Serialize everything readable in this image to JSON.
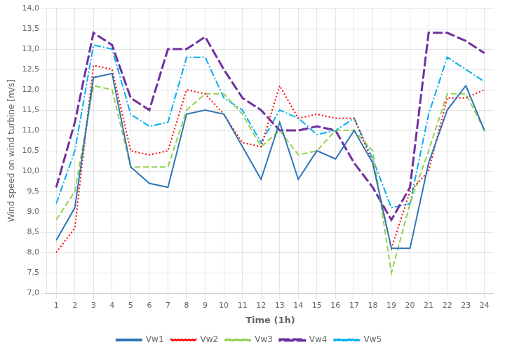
{
  "chart_data": {
    "type": "line",
    "x_label": "Time (1h)",
    "y_label": "Wind speed on wind turbine [m/s]",
    "x": [
      1,
      2,
      3,
      4,
      5,
      6,
      7,
      8,
      9,
      10,
      11,
      12,
      13,
      14,
      15,
      16,
      17,
      18,
      19,
      20,
      21,
      22,
      23,
      24
    ],
    "series": [
      {
        "name": "Vw1",
        "color": "#2e75b6",
        "line_style": "solid",
        "values": [
          8.3,
          9.1,
          12.3,
          12.4,
          10.1,
          9.7,
          9.6,
          11.4,
          11.5,
          11.4,
          10.6,
          9.8,
          11.2,
          9.8,
          10.5,
          10.3,
          11.0,
          10.2,
          8.1,
          8.1,
          10.2,
          11.5,
          12.1,
          11.0
        ]
      },
      {
        "name": "Vw2",
        "color": "#ff0000",
        "line_style": "dotted",
        "values": [
          8.0,
          8.6,
          12.6,
          12.5,
          10.5,
          10.4,
          10.5,
          12.0,
          11.9,
          11.4,
          10.7,
          10.6,
          12.1,
          11.3,
          11.4,
          11.3,
          11.3,
          10.2,
          8.1,
          9.5,
          10.0,
          11.8,
          11.8,
          12.0
        ]
      },
      {
        "name": "Vw3",
        "color": "#92d050",
        "line_style": "dashed",
        "values": [
          8.8,
          9.5,
          12.1,
          12.0,
          10.1,
          10.1,
          10.1,
          11.5,
          11.9,
          11.9,
          11.4,
          10.6,
          11.0,
          10.4,
          10.5,
          11.0,
          11.0,
          10.5,
          7.5,
          9.2,
          10.5,
          11.9,
          11.9,
          11.0
        ]
      },
      {
        "name": "Vw4",
        "color": "#7030a0",
        "line_style": "longdash",
        "values": [
          9.6,
          11.2,
          13.4,
          13.1,
          11.8,
          11.5,
          13.0,
          13.0,
          13.3,
          12.5,
          11.8,
          11.5,
          11.0,
          11.0,
          11.1,
          11.0,
          10.2,
          9.6,
          8.8,
          9.6,
          13.4,
          13.4,
          13.2,
          12.9
        ]
      },
      {
        "name": "Vw5",
        "color": "#00b0f0",
        "line_style": "dashdot",
        "values": [
          9.2,
          10.5,
          13.1,
          13.0,
          11.4,
          11.1,
          11.2,
          12.8,
          12.8,
          11.8,
          11.5,
          10.7,
          11.5,
          11.3,
          10.9,
          11.0,
          11.3,
          10.3,
          9.1,
          9.2,
          11.4,
          12.8,
          12.5,
          12.2
        ]
      }
    ],
    "xlim": [
      0.5,
      24.5
    ],
    "xticks": [
      1,
      2,
      3,
      4,
      5,
      6,
      7,
      8,
      9,
      10,
      11,
      12,
      13,
      14,
      15,
      16,
      17,
      18,
      19,
      20,
      21,
      22,
      23,
      24
    ],
    "ylim": [
      7.0,
      14.0
    ],
    "yticks": [
      {
        "value": 7.0,
        "label": "7,0"
      },
      {
        "value": 7.5,
        "label": "7,5"
      },
      {
        "value": 8.0,
        "label": "8,0"
      },
      {
        "value": 8.5,
        "label": "8,5"
      },
      {
        "value": 9.0,
        "label": "9,0"
      },
      {
        "value": 9.5,
        "label": "9,5"
      },
      {
        "value": 10.0,
        "label": "10,0"
      },
      {
        "value": 10.5,
        "label": "10,5"
      },
      {
        "value": 11.0,
        "label": "11,0"
      },
      {
        "value": 11.5,
        "label": "11,5"
      },
      {
        "value": 12.0,
        "label": "12,0"
      },
      {
        "value": 12.5,
        "label": "12,5"
      },
      {
        "value": 13.0,
        "label": "13,0"
      },
      {
        "value": 13.5,
        "label": "13,5"
      },
      {
        "value": 14.0,
        "label": "14,0"
      }
    ],
    "grid": true,
    "legend": "bottom"
  }
}
